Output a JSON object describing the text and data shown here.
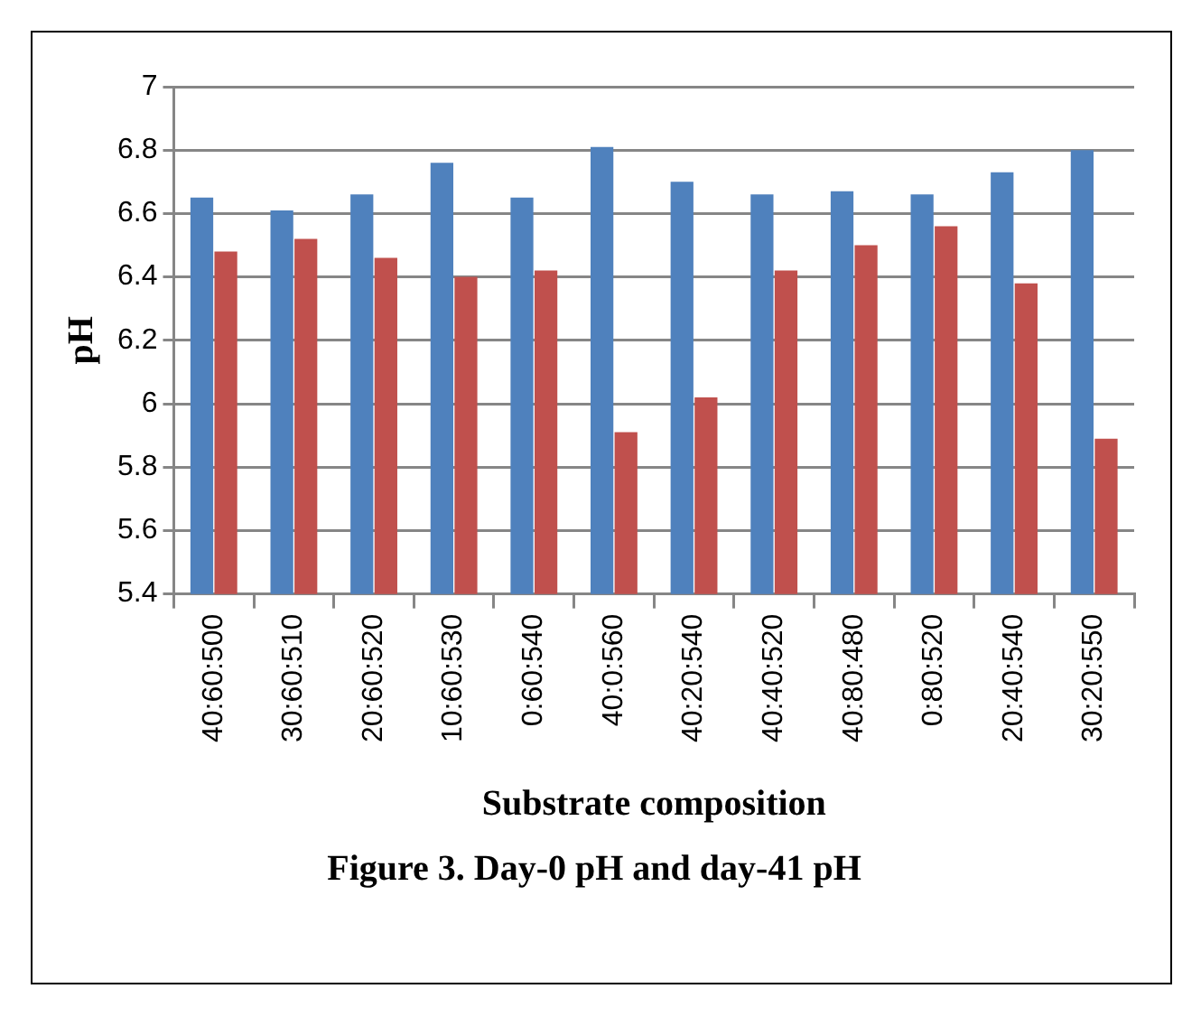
{
  "chart_data": {
    "type": "bar",
    "title": "Figure 3. Day-0 pH and day-41 pH",
    "xlabel": "Substrate composition",
    "ylabel": "pH",
    "categories": [
      "40:60:500",
      "30:60:510",
      "20:60:520",
      "10:60:530",
      "0:60:540",
      "40:0:560",
      "40:20:540",
      "40:40:520",
      "40:80:480",
      "0:80:520",
      "20:40:540",
      "30:20:550"
    ],
    "series": [
      {
        "color": "#4f81bd",
        "values": [
          6.65,
          6.61,
          6.66,
          6.76,
          6.65,
          6.81,
          6.7,
          6.66,
          6.67,
          6.66,
          6.73,
          6.8
        ]
      },
      {
        "color": "#c0504d",
        "values": [
          6.48,
          6.52,
          6.46,
          6.4,
          6.42,
          5.91,
          6.02,
          6.42,
          6.5,
          6.56,
          6.38,
          5.89
        ]
      }
    ],
    "ylim": [
      5.4,
      7
    ],
    "yticks": [
      5.4,
      5.6,
      5.8,
      6,
      6.2,
      6.4,
      6.6,
      6.8,
      7
    ],
    "grid": "y",
    "legend": false
  }
}
